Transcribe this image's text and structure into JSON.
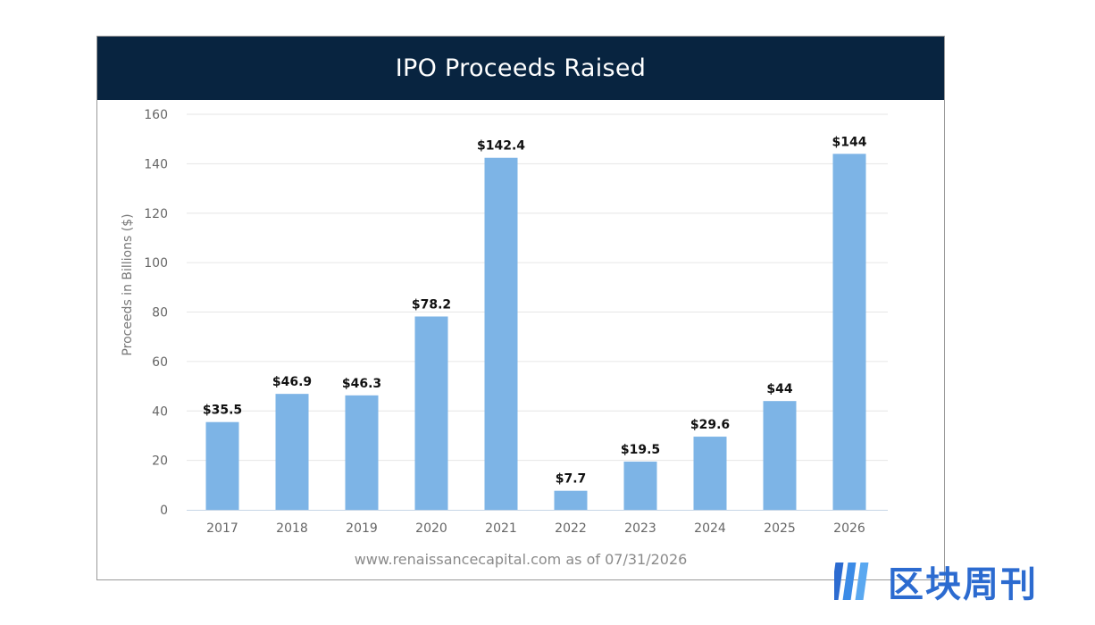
{
  "chart_data": {
    "type": "bar",
    "title": "IPO Proceeds Raised",
    "ylabel": "Proceeds in Billions ($)",
    "xlabel": "",
    "ylim": [
      0,
      160
    ],
    "yticks": [
      0,
      20,
      40,
      60,
      80,
      100,
      120,
      140,
      160
    ],
    "grid": true,
    "categories": [
      "2017",
      "2018",
      "2019",
      "2020",
      "2021",
      "2022",
      "2023",
      "2024",
      "2025",
      "2026"
    ],
    "values": [
      35.5,
      46.9,
      46.3,
      78.2,
      142.4,
      7.7,
      19.5,
      29.6,
      44,
      144
    ],
    "data_labels": [
      "$35.5",
      "$46.9",
      "$46.3",
      "$78.2",
      "$142.4",
      "$7.7",
      "$19.5",
      "$29.6",
      "$44",
      "$144"
    ],
    "bar_color": "#7db4e6",
    "source": "www.renaissancecapital.com as of 07/31/2026"
  },
  "header": {
    "bg_color": "#082440"
  },
  "watermark": {
    "text": "区块周刊",
    "color": "#2c6bd0"
  }
}
